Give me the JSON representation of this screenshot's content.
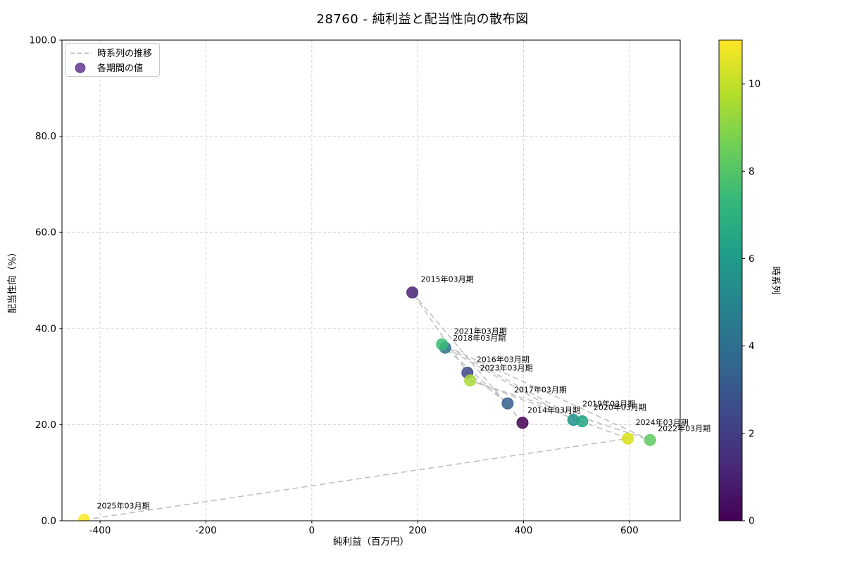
{
  "title": "28760 - 純利益と配当性向の散布図",
  "chart_data": {
    "type": "scatter",
    "title": "28760 - 純利益と配当性向の散布図",
    "xlabel": "純利益（百万円）",
    "ylabel": "配当性向（%）",
    "xlim": [
      -472,
      696
    ],
    "ylim": [
      0,
      100
    ],
    "xticks": [
      -400,
      -200,
      0,
      200,
      400,
      600
    ],
    "yticks": [
      0,
      20,
      40,
      60,
      80,
      100
    ],
    "ytick_labels": [
      "0.0",
      "20.0",
      "40.0",
      "60.0",
      "80.0",
      "100.0"
    ],
    "grid": true,
    "line_color": "#bdbdbd",
    "legend": {
      "position": "upper left",
      "entries": [
        {
          "type": "line",
          "label": "時系列の推移",
          "color": "#a9a9a9"
        },
        {
          "type": "point",
          "label": "各期間の値",
          "color": "#6f4d9b"
        }
      ]
    },
    "colorbar": {
      "label": "時系列",
      "vmin": 0,
      "vmax": 11,
      "ticks": [
        0,
        2,
        4,
        6,
        8,
        10
      ],
      "colormap": "viridis",
      "gradient": [
        "#440154",
        "#482878",
        "#3e4989",
        "#31688e",
        "#26828e",
        "#1f9e89",
        "#35b779",
        "#6ece58",
        "#b5de2b",
        "#fde725"
      ]
    },
    "points": [
      {
        "label": "2014年03月期",
        "x": 398,
        "y": 20.4,
        "t": 0,
        "color": "#440154",
        "label_offset": [
          7,
          -14
        ]
      },
      {
        "label": "2015年03月期",
        "x": 190,
        "y": 47.5,
        "t": 1,
        "color": "#482576",
        "label_offset": [
          12,
          -15
        ]
      },
      {
        "label": "2016年03月期",
        "x": 294,
        "y": 30.8,
        "t": 2,
        "color": "#3f4889",
        "label_offset": [
          13,
          -15
        ]
      },
      {
        "label": "2017年03月期",
        "x": 370,
        "y": 24.4,
        "t": 3,
        "color": "#355f8d",
        "label_offset": [
          9,
          -16
        ]
      },
      {
        "label": "2018年03月期",
        "x": 252,
        "y": 36.0,
        "t": 4,
        "color": "#2b758e",
        "label_offset": [
          11,
          -10
        ]
      },
      {
        "label": "2019年03月期",
        "x": 494,
        "y": 21.0,
        "t": 5,
        "color": "#20928c",
        "label_offset": [
          13,
          -19
        ]
      },
      {
        "label": "2020年03月期",
        "x": 511,
        "y": 20.7,
        "t": 6,
        "color": "#21a685",
        "label_offset": [
          16,
          -16
        ]
      },
      {
        "label": "2021年03月期",
        "x": 246,
        "y": 36.7,
        "t": 7,
        "color": "#3bbb75",
        "label_offset": [
          17,
          -15
        ]
      },
      {
        "label": "2022年03月期",
        "x": 639,
        "y": 16.8,
        "t": 8,
        "color": "#5ec962",
        "label_offset": [
          11,
          -13
        ]
      },
      {
        "label": "2023年03月期",
        "x": 299,
        "y": 29.2,
        "t": 9,
        "color": "#a8db34",
        "label_offset": [
          14,
          -14
        ]
      },
      {
        "label": "2024年03月期",
        "x": 597,
        "y": 17.1,
        "t": 10,
        "color": "#d8e219",
        "label_offset": [
          11,
          -19
        ]
      },
      {
        "label": "2025年03月期",
        "x": -430,
        "y": 0.2,
        "t": 11,
        "color": "#fde725",
        "label_offset": [
          18,
          -16
        ]
      }
    ]
  }
}
